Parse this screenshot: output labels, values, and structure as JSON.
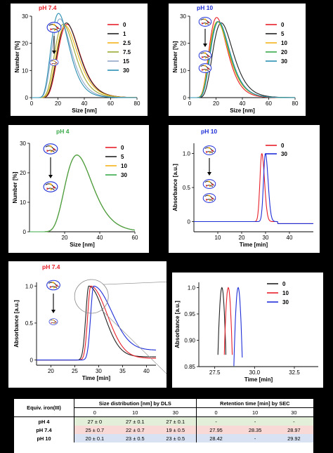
{
  "chart_data": [
    {
      "type": "line",
      "panel": "a",
      "title": "pH 7.4",
      "title_color": "#e8202a",
      "xlabel": "Size [nm]",
      "ylabel": "Number [%]",
      "xlim": [
        0,
        80
      ],
      "ylim": [
        0,
        30
      ],
      "xticks": [
        0,
        20,
        40,
        60,
        80
      ],
      "yticks": [
        0,
        10,
        20,
        30
      ],
      "legend_position": "top-right",
      "series": [
        {
          "name": "0",
          "color": "#e8202a",
          "peak": 27,
          "max": 27,
          "width": 9.5
        },
        {
          "name": "1",
          "color": "#222222",
          "peak": 26.5,
          "max": 27.5,
          "width": 9.5
        },
        {
          "name": "2.5",
          "color": "#f4b41a",
          "peak": 25.5,
          "max": 26.5,
          "width": 9.5
        },
        {
          "name": "7.5",
          "color": "#9aa832",
          "peak": 24,
          "max": 27,
          "width": 9
        },
        {
          "name": "15",
          "color": "#8fa7c7",
          "peak": 21.5,
          "max": 29,
          "width": 8.5
        },
        {
          "name": "30",
          "color": "#2a8fb2",
          "peak": 20.5,
          "max": 31,
          "width": 8
        }
      ]
    },
    {
      "type": "line",
      "panel": "b",
      "title": "pH 10",
      "title_color": "#1f2fd8",
      "xlabel": "Size [nm]",
      "ylabel": "Number [%]",
      "xlim": [
        0,
        80
      ],
      "ylim": [
        0,
        30
      ],
      "xticks": [
        0,
        20,
        40,
        60,
        80
      ],
      "yticks": [
        0,
        10,
        20,
        30
      ],
      "legend_position": "top-right",
      "series": [
        {
          "name": "0",
          "color": "#e8202a",
          "peak": 20.5,
          "max": 29.5,
          "width": 8
        },
        {
          "name": "5",
          "color": "#222222",
          "peak": 24,
          "max": 27.5,
          "width": 9
        },
        {
          "name": "10",
          "color": "#f4b41a",
          "peak": 21,
          "max": 28,
          "width": 8.5
        },
        {
          "name": "20",
          "color": "#3aaa4a",
          "peak": 21.5,
          "max": 28,
          "width": 8.5
        },
        {
          "name": "30",
          "color": "#2a8fb2",
          "peak": 22,
          "max": 28,
          "width": 8.5
        }
      ]
    },
    {
      "type": "line",
      "panel": "c",
      "title": "pH 4",
      "title_color": "#3aaa4a",
      "xlabel": "Size [nm]",
      "ylabel": "Number [%]",
      "xlim": [
        0,
        60
      ],
      "ylim": [
        0,
        30
      ],
      "xticks": [
        20,
        40,
        60
      ],
      "yticks": [
        0,
        10,
        20,
        30
      ],
      "legend_position": "top-right",
      "series": [
        {
          "name": "0",
          "color": "#e8202a",
          "peak": 27,
          "max": 26,
          "width": 9
        },
        {
          "name": "5",
          "color": "#222222",
          "peak": 27,
          "max": 26,
          "width": 9
        },
        {
          "name": "10",
          "color": "#f4b41a",
          "peak": 27,
          "max": 26,
          "width": 9
        },
        {
          "name": "30",
          "color": "#3aaa4a",
          "peak": 27,
          "max": 26,
          "width": 9
        }
      ]
    },
    {
      "type": "line",
      "panel": "d",
      "title": "pH 10",
      "title_color": "#1f2fd8",
      "xlabel": "Time [min]",
      "ylabel": "Absorbance [a.u.]",
      "xlim": [
        0,
        50
      ],
      "ylim": [
        -0.15,
        1.15
      ],
      "xticks": [
        10,
        20,
        30,
        40
      ],
      "yticks": [
        0,
        0.5,
        1.0
      ],
      "ytick_labels": [
        "0",
        "0.5",
        "1.0"
      ],
      "legend_position": "top-right",
      "series": [
        {
          "name": "0",
          "color": "#e8202a",
          "peak": 28.42
        },
        {
          "name": "30",
          "color": "#1f2fd8",
          "peak": 29.92
        }
      ]
    },
    {
      "type": "line",
      "panel": "e",
      "title": "pH 7.4",
      "title_color": "#e8202a",
      "xlabel": "Time [min]",
      "ylabel": "Absorbance [a.u.]",
      "xlim": [
        17,
        42
      ],
      "ylim": [
        -0.07,
        1.05
      ],
      "xticks": [
        20,
        25,
        30,
        35,
        40
      ],
      "yticks": [
        0,
        0.5,
        1.0
      ],
      "ytick_labels": [
        "0",
        "0.5",
        "1.0"
      ],
      "series": [
        {
          "name": "0",
          "color": "#222222",
          "peak": 27.95,
          "tail": 0.07
        },
        {
          "name": "10",
          "color": "#e8202a",
          "peak": 28.35,
          "tail": 0.05
        },
        {
          "name": "30",
          "color": "#1f2fd8",
          "peak": 28.97,
          "tail": 0.16
        }
      ]
    },
    {
      "type": "line",
      "panel": "f",
      "xlabel": "Time [min]",
      "ylabel": "Absorbance [a.u.]",
      "xlim": [
        26.5,
        34
      ],
      "ylim": [
        0.85,
        1.01
      ],
      "xticks": [
        27.5,
        30.0,
        32.5
      ],
      "xtick_labels": [
        "27.5",
        "30.0",
        "32.5"
      ],
      "yticks": [
        0.85,
        0.9,
        0.95,
        1.0
      ],
      "ytick_labels": [
        "0.85",
        "0.90",
        "0.95",
        "1.0"
      ],
      "legend_position": "top-right",
      "series": [
        {
          "name": "0",
          "color": "#222222",
          "peak": 27.95
        },
        {
          "name": "10",
          "color": "#e8202a",
          "peak": 28.35
        },
        {
          "name": "30",
          "color": "#1f2fd8",
          "peak": 28.97
        }
      ]
    },
    {
      "type": "table",
      "col_header_left": "Equiv. iron(III)",
      "group_headers": [
        "Size distribution [nm] by DLS",
        "Retention time [min] by SEC"
      ],
      "columns": [
        "0",
        "10",
        "30",
        "0",
        "10",
        "30"
      ],
      "rows": [
        {
          "label": "pH 4",
          "bg": "#e3efd8",
          "cells": [
            "27 ± 0",
            "27 ± 0.1",
            "27 ± 0.1",
            "-",
            "-",
            "-"
          ]
        },
        {
          "label": "pH 7.4",
          "bg": "#f8d9d6",
          "cells": [
            "25 ± 0.7",
            "22 ± 0.7",
            "19 ± 0.5",
            "27.95",
            "28.35",
            "28.97"
          ]
        },
        {
          "label": "pH 10",
          "bg": "#d8e2f2",
          "cells": [
            "20 ± 0.1",
            "23 ± 0.5",
            "23 ± 0.5",
            "28.42",
            "-",
            "29.92"
          ]
        }
      ]
    }
  ]
}
